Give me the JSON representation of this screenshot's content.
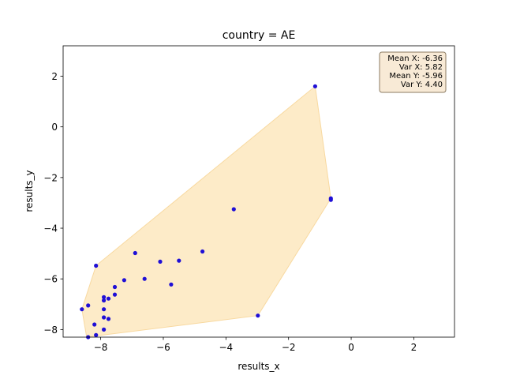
{
  "chart_data": {
    "type": "scatter",
    "title": "country = AE",
    "xlabel": "results_x",
    "ylabel": "results_y",
    "xlim": [
      -9.2,
      3.3
    ],
    "ylim": [
      -8.3,
      3.2
    ],
    "xticks": [
      {
        "value": -8,
        "label": "−8"
      },
      {
        "value": -6,
        "label": "−6"
      },
      {
        "value": -4,
        "label": "−4"
      },
      {
        "value": -2,
        "label": "−2"
      },
      {
        "value": 0,
        "label": "0"
      },
      {
        "value": 2,
        "label": "2"
      }
    ],
    "yticks": [
      {
        "value": 2,
        "label": "2"
      },
      {
        "value": 0,
        "label": "0"
      },
      {
        "value": -2,
        "label": "−2"
      },
      {
        "value": -4,
        "label": "−4"
      },
      {
        "value": -6,
        "label": "−6"
      },
      {
        "value": -8,
        "label": "−8"
      }
    ],
    "grid": false,
    "points": [
      {
        "x": -1.15,
        "y": 1.6
      },
      {
        "x": -0.65,
        "y": -2.82
      },
      {
        "x": -0.65,
        "y": -2.88
      },
      {
        "x": -3.75,
        "y": -3.25
      },
      {
        "x": -2.98,
        "y": -7.45
      },
      {
        "x": -4.75,
        "y": -4.92
      },
      {
        "x": -5.5,
        "y": -5.28
      },
      {
        "x": -6.1,
        "y": -5.32
      },
      {
        "x": -6.9,
        "y": -4.98
      },
      {
        "x": -6.6,
        "y": -6.0
      },
      {
        "x": -5.75,
        "y": -6.22
      },
      {
        "x": -7.25,
        "y": -6.05
      },
      {
        "x": -7.55,
        "y": -6.32
      },
      {
        "x": -7.55,
        "y": -6.62
      },
      {
        "x": -7.75,
        "y": -6.78
      },
      {
        "x": -7.9,
        "y": -6.72
      },
      {
        "x": -7.9,
        "y": -6.85
      },
      {
        "x": -8.15,
        "y": -5.48
      },
      {
        "x": -7.9,
        "y": -7.2
      },
      {
        "x": -8.6,
        "y": -7.2
      },
      {
        "x": -8.4,
        "y": -7.05
      },
      {
        "x": -7.9,
        "y": -7.52
      },
      {
        "x": -7.75,
        "y": -7.58
      },
      {
        "x": -8.2,
        "y": -7.8
      },
      {
        "x": -7.9,
        "y": -8.0
      },
      {
        "x": -8.15,
        "y": -8.22
      },
      {
        "x": -8.4,
        "y": -8.3
      }
    ],
    "hull": [
      {
        "x": -1.15,
        "y": 1.6
      },
      {
        "x": -0.65,
        "y": -2.82
      },
      {
        "x": -2.98,
        "y": -7.45
      },
      {
        "x": -8.15,
        "y": -8.25
      },
      {
        "x": -8.45,
        "y": -8.3
      },
      {
        "x": -8.6,
        "y": -7.2
      },
      {
        "x": -8.15,
        "y": -5.48
      }
    ],
    "stats": {
      "lines": [
        "Mean X: -6.36",
        "Var X: 5.82",
        "Mean Y: -5.96",
        "Var Y: 4.40"
      ],
      "placement": "top-right"
    },
    "colors": {
      "points": "#1f0fd6",
      "hull_fill": "#fdebc8",
      "hull_edge": "#f8d9a0",
      "stats_box_fill": "#f8ead6",
      "stats_box_edge": "#8b7b62"
    }
  }
}
